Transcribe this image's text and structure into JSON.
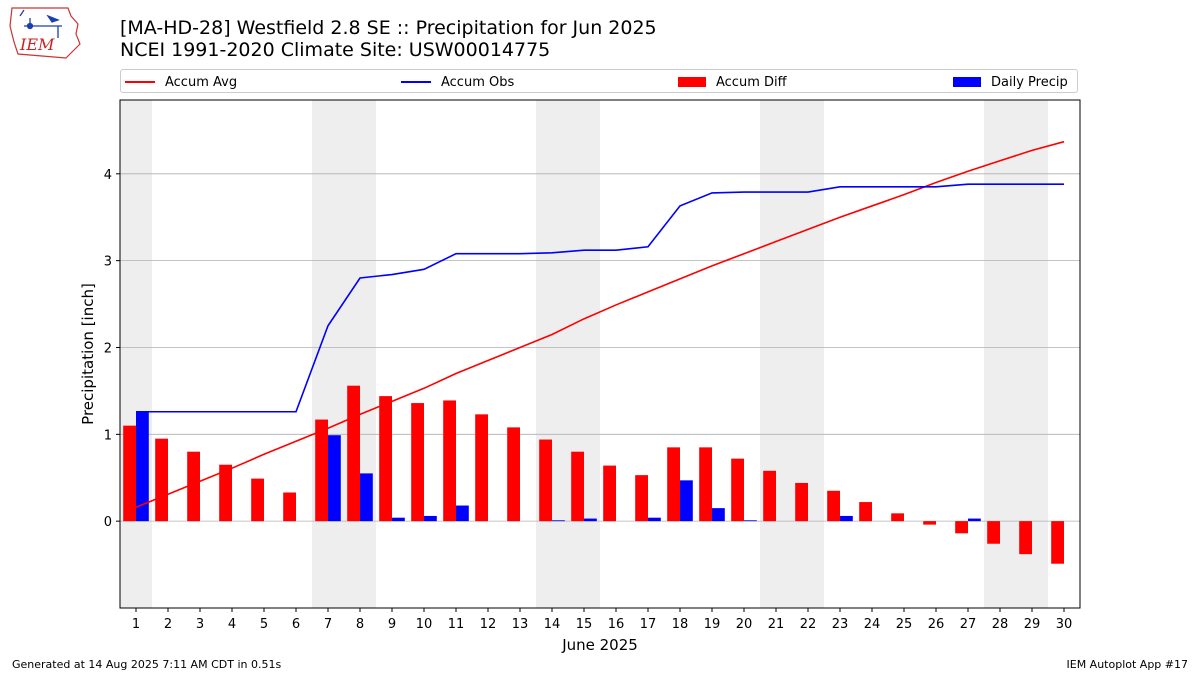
{
  "header": {
    "title_line1": "[MA-HD-28] Westfield 2.8 SE :: Precipitation for Jun 2025",
    "title_line2": "NCEI 1991-2020 Climate Site: USW00014775",
    "logo_text": "IEM"
  },
  "legend": [
    {
      "label": "Accum Avg",
      "kind": "line",
      "color": "#ff0000"
    },
    {
      "label": "Accum Obs",
      "kind": "line",
      "color": "#0000ff"
    },
    {
      "label": "Accum Diff",
      "kind": "bar",
      "color": "#ff0000"
    },
    {
      "label": "Daily Precip",
      "kind": "bar",
      "color": "#0000ff"
    }
  ],
  "footer": {
    "generated": "Generated at 14 Aug 2025 7:11 AM CDT in 0.51s",
    "app": "IEM Autoplot App #17"
  },
  "chart_data": {
    "type": "bar",
    "xlabel": "June 2025",
    "ylabel": "Precipitation [inch]",
    "ylim": [
      -1.0,
      4.85
    ],
    "yticks": [
      0,
      1,
      2,
      3,
      4
    ],
    "grid": "horizontal",
    "legend_position": "top",
    "weekend_shading_days": [
      [
        1,
        1
      ],
      [
        7,
        8
      ],
      [
        14,
        15
      ],
      [
        21,
        22
      ],
      [
        28,
        29
      ]
    ],
    "days": [
      1,
      2,
      3,
      4,
      5,
      6,
      7,
      8,
      9,
      10,
      11,
      12,
      13,
      14,
      15,
      16,
      17,
      18,
      19,
      20,
      21,
      22,
      23,
      24,
      25,
      26,
      27,
      28,
      29,
      30
    ],
    "series": [
      {
        "name": "Accum Avg",
        "kind": "line",
        "color": "#ff0000",
        "values": [
          0.16,
          0.31,
          0.46,
          0.61,
          0.77,
          0.92,
          1.07,
          1.23,
          1.38,
          1.53,
          1.7,
          1.85,
          2.0,
          2.15,
          2.33,
          2.49,
          2.64,
          2.79,
          2.94,
          3.08,
          3.22,
          3.36,
          3.5,
          3.63,
          3.76,
          3.9,
          4.03,
          4.15,
          4.27,
          4.37
        ]
      },
      {
        "name": "Accum Obs",
        "kind": "line",
        "color": "#0000ff",
        "values": [
          1.26,
          1.26,
          1.26,
          1.26,
          1.26,
          1.26,
          2.25,
          2.8,
          2.84,
          2.9,
          3.08,
          3.08,
          3.08,
          3.09,
          3.12,
          3.12,
          3.16,
          3.63,
          3.78,
          3.79,
          3.79,
          3.79,
          3.85,
          3.85,
          3.85,
          3.85,
          3.88,
          3.88,
          3.88,
          3.88
        ]
      },
      {
        "name": "Accum Diff",
        "kind": "bar",
        "color": "#ff0000",
        "values": [
          1.1,
          0.95,
          0.8,
          0.65,
          0.49,
          0.33,
          1.17,
          1.56,
          1.44,
          1.36,
          1.39,
          1.23,
          1.08,
          0.94,
          0.8,
          0.64,
          0.53,
          0.85,
          0.85,
          0.72,
          0.58,
          0.44,
          0.35,
          0.22,
          0.09,
          -0.04,
          -0.14,
          -0.26,
          -0.38,
          -0.49
        ]
      },
      {
        "name": "Daily Precip",
        "kind": "bar",
        "color": "#0000ff",
        "values": [
          1.26,
          0,
          0,
          0,
          0,
          0,
          0.99,
          0.55,
          0.04,
          0.06,
          0.18,
          0,
          0,
          0.01,
          0.03,
          0,
          0.04,
          0.47,
          0.15,
          0.01,
          0,
          0,
          0.06,
          0,
          0,
          0,
          0.03,
          0,
          0,
          0
        ]
      }
    ]
  }
}
